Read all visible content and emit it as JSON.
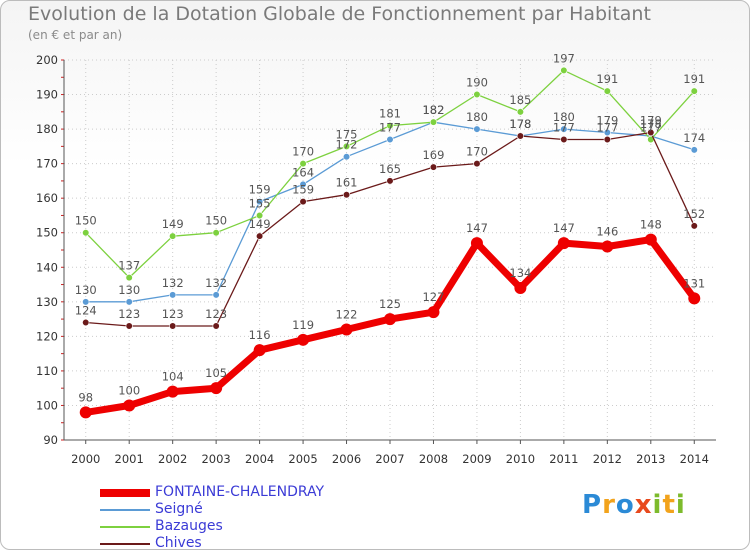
{
  "title": "Evolution de la Dotation Globale de Fonctionnement par Habitant",
  "subtitle": "(en € et par an)",
  "logo": "Proxiti",
  "chart_data": {
    "type": "line",
    "title": "Evolution de la Dotation Globale de Fonctionnement par Habitant",
    "subtitle": "(en € et par an)",
    "xlabel": "",
    "ylabel": "",
    "ylim": [
      90,
      200
    ],
    "yticks": [
      90,
      100,
      110,
      120,
      130,
      140,
      150,
      160,
      170,
      180,
      190,
      200
    ],
    "x": [
      "2000",
      "2001",
      "2002",
      "2003",
      "2004",
      "2005",
      "2006",
      "2007",
      "2008",
      "2009",
      "2010",
      "2011",
      "2012",
      "2013",
      "2014"
    ],
    "grid": true,
    "legend_position": "bottom-left",
    "series": [
      {
        "name": "Seigné",
        "color": "#5b9bd5",
        "values": [
          130,
          130,
          132,
          132,
          159,
          164,
          172,
          177,
          182,
          180,
          178,
          180,
          179,
          178,
          174
        ]
      },
      {
        "name": "Bazauges",
        "color": "#7dd13f",
        "values": [
          150,
          137,
          149,
          150,
          155,
          170,
          175,
          181,
          182,
          190,
          185,
          197,
          191,
          177,
          191
        ]
      },
      {
        "name": "Chives",
        "color": "#6b1a1a",
        "values": [
          124,
          123,
          123,
          123,
          149,
          159,
          161,
          165,
          169,
          170,
          178,
          177,
          177,
          179,
          152
        ]
      },
      {
        "name": "FONTAINE-CHALENDRAY",
        "color": "#ee0000",
        "values": [
          98,
          100,
          104,
          105,
          116,
          119,
          122,
          125,
          127,
          147,
          134,
          147,
          146,
          148,
          131
        ]
      }
    ]
  }
}
